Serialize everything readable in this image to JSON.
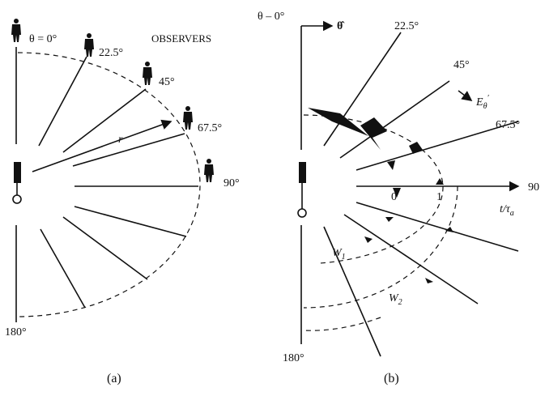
{
  "panel_a": {
    "label": "(a)",
    "heading": "OBSERVERS",
    "angles": [
      "θ = 0°",
      "22.5°",
      "45°",
      "67.5°",
      "90°",
      "180°"
    ],
    "radius": "r"
  },
  "panel_b": {
    "label": "(b)",
    "axis_label": "θ – 0°",
    "unit_vector": "θ̂",
    "angles": [
      "22.5°",
      "45°",
      "67.5°",
      "90",
      "180°"
    ],
    "field": {
      "base": "E",
      "sub": "θ",
      "sup": "′"
    },
    "time_axis": {
      "label_base": "t/τ",
      "label_sub": "a",
      "ticks": [
        "0",
        "1"
      ]
    },
    "wavefronts": [
      {
        "base": "W",
        "sub": "1"
      },
      {
        "base": "W",
        "sub": "2"
      }
    ]
  }
}
